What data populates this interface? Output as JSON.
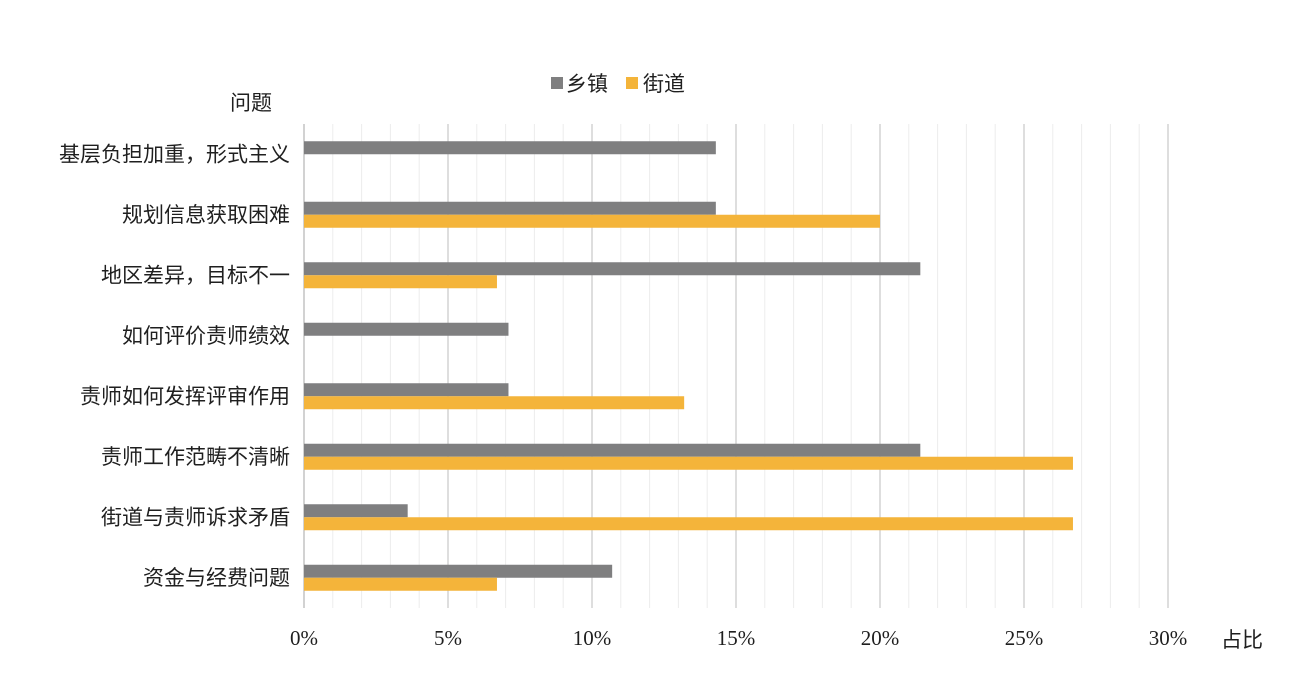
{
  "chart_data": {
    "type": "bar",
    "orientation": "horizontal",
    "title": "",
    "ylabel": "问题",
    "xlabel": "占比",
    "categories": [
      "基层负担加重，形式主义",
      "规划信息获取困难",
      "地区差异，目标不一",
      "如何评价责师绩效",
      "责师如何发挥评审作用",
      "责师工作范畴不清晰",
      "街道与责师诉求矛盾",
      "资金与经费问题"
    ],
    "series": [
      {
        "name": "乡镇",
        "color": "#7f7f80",
        "values": [
          14.3,
          14.3,
          21.4,
          7.1,
          7.1,
          21.4,
          3.6,
          10.7
        ]
      },
      {
        "name": "街道",
        "color": "#f4b43a",
        "values": [
          null,
          20.0,
          6.7,
          null,
          13.2,
          26.7,
          26.7,
          6.7
        ]
      }
    ],
    "xlim": [
      0,
      30
    ],
    "xticks": [
      0,
      5,
      10,
      15,
      20,
      25,
      30
    ],
    "xtick_labels": [
      "0%",
      "5%",
      "10%",
      "15%",
      "20%",
      "25%",
      "30%"
    ],
    "grid": "vertical major and minor",
    "legend_position": "top-center"
  }
}
